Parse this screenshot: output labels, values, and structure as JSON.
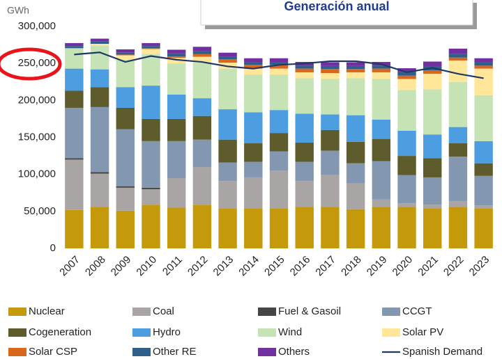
{
  "chart_data": {
    "type": "bar",
    "stacked": true,
    "title": "Generación anual",
    "y_label": "GWh",
    "categories": [
      "2007",
      "2008",
      "2009",
      "2010",
      "2011",
      "2012",
      "2013",
      "2014",
      "2015",
      "2016",
      "2017",
      "2018",
      "2019",
      "2020",
      "2021",
      "2022",
      "2023"
    ],
    "ylim": [
      0,
      300000
    ],
    "yticks": [
      0,
      {
        "value": 50000,
        "label": "50,000"
      },
      {
        "value": 100000,
        "label": "100,000"
      },
      {
        "value": 150000,
        "label": "150,000"
      },
      {
        "value": 200000,
        "label": "200,000"
      },
      {
        "value": 250000,
        "label": "250,000"
      },
      {
        "value": 300000,
        "label": "300,000"
      }
    ],
    "grid": false,
    "legend": "bottom",
    "series": [
      {
        "name": "Nuclear",
        "color": "#c49a0c",
        "values": [
          52000,
          56000,
          51000,
          59000,
          55000,
          59000,
          54000,
          54000,
          54000,
          56000,
          56000,
          53000,
          56000,
          56000,
          54000,
          56000,
          54000
        ]
      },
      {
        "name": "Coal",
        "color": "#aaa5a5",
        "values": [
          68000,
          45000,
          31000,
          21000,
          40000,
          51000,
          37000,
          42000,
          51000,
          35000,
          43000,
          35000,
          10000,
          5000,
          5000,
          8000,
          4000
        ]
      },
      {
        "name": "Fuel & Gasoil",
        "color": "#454545",
        "values": [
          2000,
          2000,
          2000,
          2000,
          0,
          0,
          0,
          0,
          0,
          0,
          0,
          0,
          0,
          0,
          0,
          0,
          0
        ]
      },
      {
        "name": "CCGT",
        "color": "#8497b0",
        "values": [
          68000,
          88000,
          77000,
          63000,
          50000,
          37000,
          25000,
          21000,
          26000,
          26000,
          33000,
          27000,
          52000,
          38000,
          37000,
          60000,
          40000
        ]
      },
      {
        "name": "Cogeneration",
        "color": "#5e5c2c",
        "values": [
          23000,
          27000,
          29000,
          30000,
          30000,
          32000,
          31000,
          25000,
          25000,
          26000,
          28000,
          29000,
          30000,
          26000,
          26000,
          18000,
          17000
        ]
      },
      {
        "name": "Hydro",
        "color": "#4c9ee0",
        "values": [
          30000,
          24000,
          28000,
          45000,
          33000,
          24000,
          41000,
          42000,
          31000,
          39000,
          21000,
          36000,
          26000,
          34000,
          32000,
          22000,
          30000
        ]
      },
      {
        "name": "Wind",
        "color": "#c6e3b5",
        "values": [
          27000,
          32000,
          37000,
          43000,
          42000,
          48000,
          55000,
          51000,
          48000,
          48000,
          48000,
          50000,
          55000,
          55000,
          61000,
          61000,
          62000
        ]
      },
      {
        "name": "Solar PV",
        "color": "#ffe699",
        "values": [
          500,
          2500,
          6000,
          6500,
          7500,
          8000,
          8000,
          8000,
          8000,
          8000,
          8000,
          8000,
          9000,
          15000,
          21000,
          29000,
          36000
        ]
      },
      {
        "name": "Solar CSP",
        "color": "#d8661c",
        "values": [
          0,
          0,
          1000,
          1000,
          2000,
          3500,
          4500,
          5000,
          5000,
          5000,
          5500,
          4500,
          5000,
          4500,
          4500,
          4000,
          4000
        ]
      },
      {
        "name": "Other RE",
        "color": "#2e5f8a",
        "values": [
          3000,
          3000,
          3000,
          3000,
          4000,
          4000,
          4000,
          4000,
          4000,
          4000,
          4000,
          4000,
          4000,
          5000,
          5000,
          5000,
          5000
        ]
      },
      {
        "name": "Others",
        "color": "#7030a0",
        "values": [
          4000,
          4000,
          4000,
          4000,
          5000,
          6000,
          5000,
          5000,
          5000,
          5000,
          5000,
          5000,
          5000,
          5000,
          7000,
          7000,
          5000
        ]
      },
      {
        "name": "Spanish Demand",
        "color": "#1f3864",
        "kind": "line",
        "values": [
          262000,
          265000,
          252000,
          260000,
          255000,
          252000,
          246000,
          243000,
          248000,
          250000,
          253000,
          253000,
          249000,
          238000,
          244000,
          236000,
          230000
        ]
      }
    ]
  }
}
